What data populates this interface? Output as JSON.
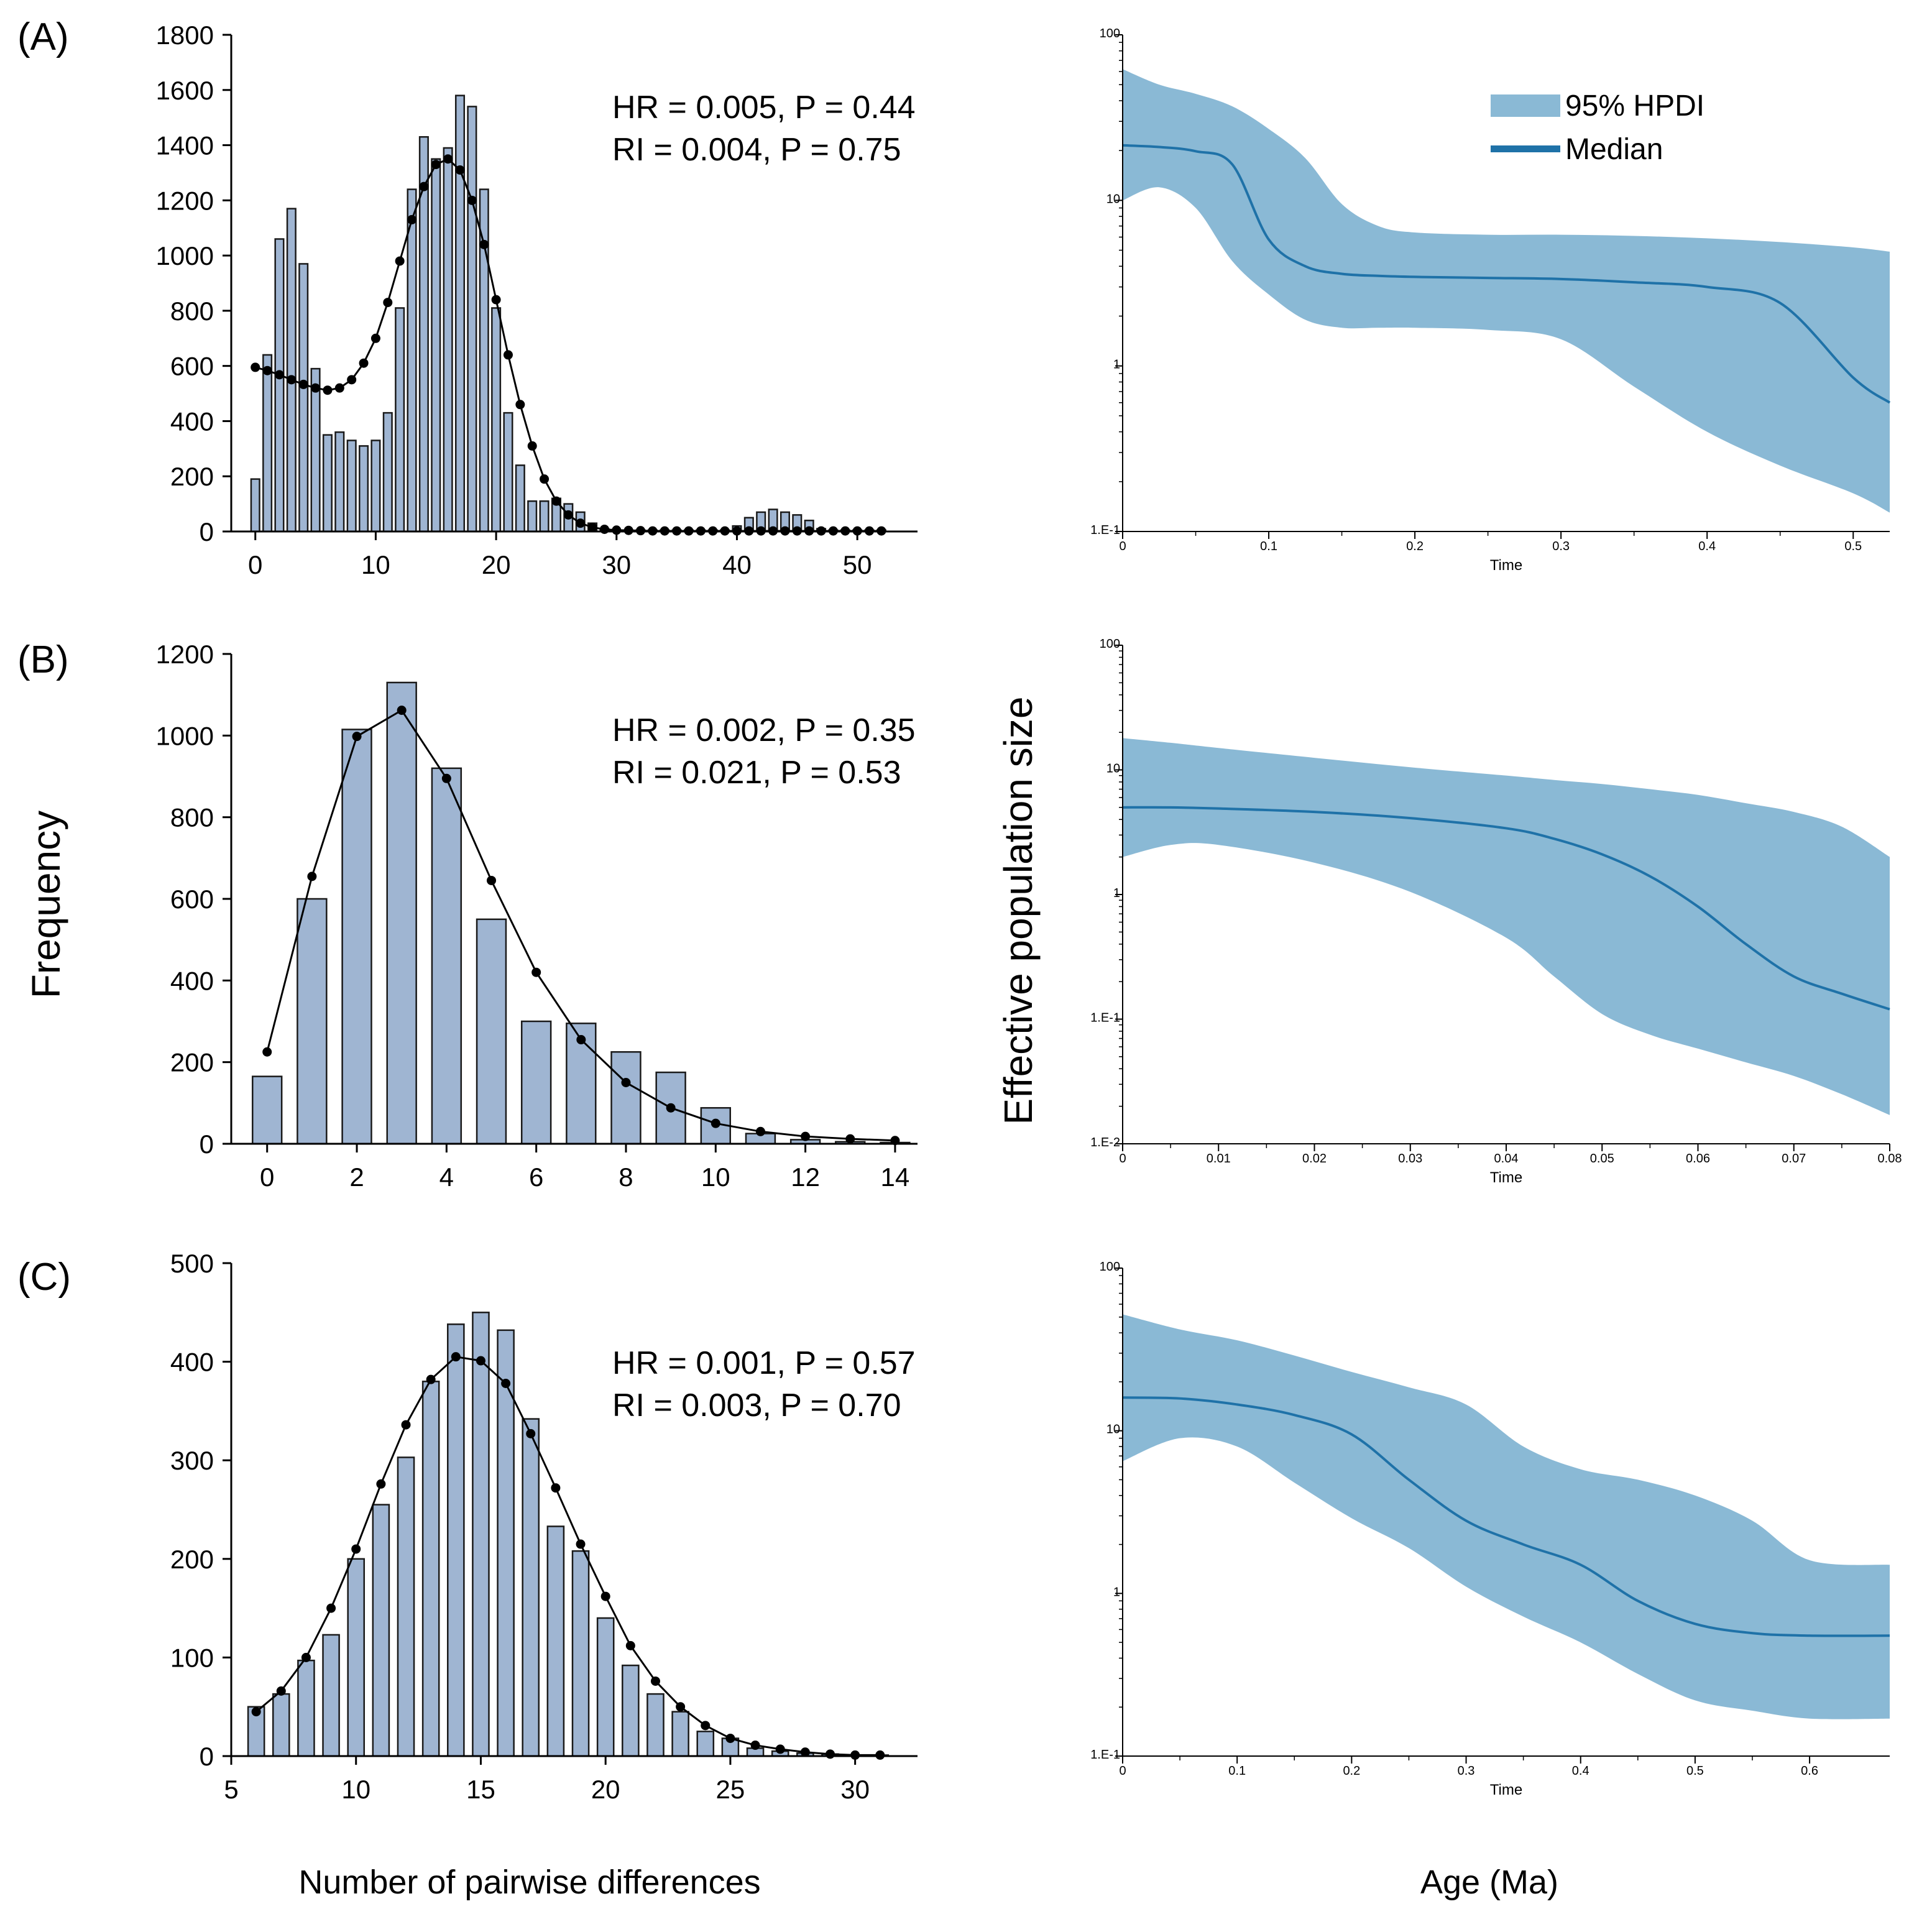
{
  "figure": {
    "left_ylabel": "Frequency",
    "left_xlabel": "Number of pairwise differences",
    "right_ylabel": "Effective population size",
    "right_xlabel": "Age (Ma)"
  },
  "colors": {
    "bar_fill": "#9FB5D2",
    "bar_stroke": "#1A1A1A",
    "hpd_fill": "#8AB9D5",
    "median_line": "#1F72A8",
    "axis": "#000000",
    "expected_line": "#000000"
  },
  "legend": {
    "hpdi_label": "95% HPDI",
    "median_label": "Median"
  },
  "chart_data": [
    {
      "panel": "(A)",
      "type": "bar",
      "title": "",
      "xlabel": "Number of pairwise differences",
      "ylabel": "Frequency",
      "xlim": [
        -2,
        55
      ],
      "ylim": [
        0,
        1800
      ],
      "xticks": [
        0,
        10,
        20,
        30,
        40,
        50
      ],
      "yticks": [
        0,
        200,
        400,
        600,
        800,
        1000,
        1200,
        1400,
        1600,
        1800
      ],
      "stats": [
        "HR = 0.005, P = 0.44",
        "RI = 0.004, P = 0.75"
      ],
      "bar_width": 0.7,
      "observed": {
        "x": [
          0,
          1,
          2,
          3,
          4,
          5,
          6,
          7,
          8,
          9,
          10,
          11,
          12,
          13,
          14,
          15,
          16,
          17,
          18,
          19,
          20,
          21,
          22,
          23,
          24,
          25,
          26,
          27,
          28,
          29,
          30,
          31,
          32,
          33,
          34,
          35,
          36,
          37,
          38,
          39,
          40,
          41,
          42,
          43,
          44,
          45,
          46,
          47,
          48,
          49,
          50,
          51,
          52
        ],
        "values": [
          190,
          640,
          1060,
          1170,
          970,
          590,
          350,
          360,
          330,
          310,
          330,
          430,
          810,
          1240,
          1430,
          1350,
          1390,
          1580,
          1540,
          1240,
          810,
          430,
          240,
          110,
          110,
          120,
          100,
          70,
          30,
          10,
          5,
          5,
          5,
          5,
          5,
          5,
          5,
          5,
          5,
          5,
          20,
          50,
          70,
          80,
          70,
          60,
          40,
          10,
          5,
          5,
          5,
          5,
          5
        ]
      },
      "expected": {
        "x": [
          0,
          1,
          2,
          3,
          4,
          5,
          6,
          7,
          8,
          9,
          10,
          11,
          12,
          13,
          14,
          15,
          16,
          17,
          18,
          19,
          20,
          21,
          22,
          23,
          24,
          25,
          26,
          27,
          28,
          29,
          30,
          31,
          32,
          33,
          34,
          35,
          36,
          37,
          38,
          39,
          40,
          41,
          42,
          43,
          44,
          45,
          46,
          47,
          48,
          49,
          50,
          51,
          52
        ],
        "values": [
          595,
          583,
          568,
          550,
          533,
          520,
          512,
          520,
          550,
          610,
          700,
          830,
          980,
          1130,
          1250,
          1330,
          1350,
          1310,
          1200,
          1040,
          840,
          640,
          460,
          310,
          190,
          110,
          60,
          30,
          15,
          8,
          5,
          4,
          3,
          2,
          2,
          2,
          2,
          2,
          2,
          2,
          2,
          2,
          2,
          2,
          2,
          2,
          2,
          2,
          2,
          2,
          2,
          2,
          2
        ]
      }
    },
    {
      "panel": "(B)",
      "type": "bar",
      "title": "",
      "xlabel": "Number of pairwise differences",
      "ylabel": "Frequency",
      "xlim": [
        -0.8,
        14.5
      ],
      "ylim": [
        0,
        1200
      ],
      "xticks": [
        0,
        2,
        4,
        6,
        8,
        10,
        12,
        14
      ],
      "yticks": [
        0,
        200,
        400,
        600,
        800,
        1000,
        1200
      ],
      "stats": [
        "HR = 0.002, P = 0.35",
        "RI = 0.021, P = 0.53"
      ],
      "bar_width": 0.65,
      "observed": {
        "x": [
          0,
          1,
          2,
          3,
          4,
          5,
          6,
          7,
          8,
          9,
          10,
          11,
          12,
          13,
          14
        ],
        "values": [
          165,
          600,
          1015,
          1130,
          920,
          550,
          300,
          295,
          225,
          175,
          88,
          25,
          10,
          5,
          3
        ]
      },
      "expected": {
        "x": [
          0,
          1,
          2,
          3,
          4,
          5,
          6,
          7,
          8,
          9,
          10,
          11,
          12,
          13,
          14
        ],
        "values": [
          225,
          655,
          998,
          1062,
          895,
          645,
          420,
          255,
          150,
          88,
          50,
          30,
          18,
          12,
          8
        ]
      }
    },
    {
      "panel": "(C)",
      "type": "bar",
      "title": "",
      "xlabel": "Number of pairwise differences",
      "ylabel": "Frequency",
      "xlim": [
        5,
        32.5
      ],
      "ylim": [
        0,
        500
      ],
      "xticks": [
        5,
        10,
        15,
        20,
        25,
        30
      ],
      "yticks": [
        0,
        100,
        200,
        300,
        400,
        500
      ],
      "stats": [
        "HR = 0.001, P = 0.57",
        "RI = 0.003, P = 0.70"
      ],
      "bar_width": 0.65,
      "observed": {
        "x": [
          6,
          7,
          8,
          9,
          10,
          11,
          12,
          13,
          14,
          15,
          16,
          17,
          18,
          19,
          20,
          21,
          22,
          23,
          24,
          25,
          26,
          27,
          28,
          29,
          30,
          31
        ],
        "values": [
          50,
          63,
          97,
          123,
          200,
          255,
          303,
          380,
          438,
          450,
          432,
          342,
          233,
          208,
          140,
          92,
          63,
          45,
          25,
          18,
          8,
          5,
          3,
          2,
          1,
          1
        ]
      },
      "expected": {
        "x": [
          6,
          7,
          8,
          9,
          10,
          11,
          12,
          13,
          14,
          15,
          16,
          17,
          18,
          19,
          20,
          21,
          22,
          23,
          24,
          25,
          26,
          27,
          28,
          29,
          30,
          31
        ],
        "values": [
          45,
          66,
          100,
          150,
          210,
          276,
          336,
          382,
          405,
          401,
          378,
          327,
          272,
          215,
          162,
          112,
          76,
          50,
          31,
          18,
          11,
          7,
          4,
          2,
          1,
          1
        ]
      }
    },
    {
      "panel": "(A) skyline",
      "type": "area",
      "xlabel": "Time",
      "ylabel": "Effective population size",
      "xlim": [
        0,
        0.525
      ],
      "ylog_range": [
        -1,
        2
      ],
      "yticks": [
        {
          "v": 0.1,
          "label": "1.E-1"
        },
        {
          "v": 1,
          "label": "1"
        },
        {
          "v": 10,
          "label": "10"
        },
        {
          "v": 100,
          "label": "100"
        }
      ],
      "xticks": [
        {
          "v": 0,
          "label": "0"
        },
        {
          "v": 0.1,
          "label": "0.1"
        },
        {
          "v": 0.2,
          "label": "0.2"
        },
        {
          "v": 0.3,
          "label": "0.3"
        },
        {
          "v": 0.4,
          "label": "0.4"
        },
        {
          "v": 0.5,
          "label": "0.5"
        }
      ],
      "x": [
        0,
        0.025,
        0.05,
        0.075,
        0.1,
        0.125,
        0.15,
        0.175,
        0.2,
        0.25,
        0.3,
        0.35,
        0.4,
        0.45,
        0.5,
        0.525
      ],
      "upper": [
        62,
        50,
        44,
        37,
        27,
        18,
        9.5,
        7,
        6.4,
        6.2,
        6.2,
        6.1,
        5.9,
        5.6,
        5.2,
        4.9
      ],
      "median": [
        21.5,
        21,
        19.8,
        16.5,
        5.8,
        4,
        3.6,
        3.5,
        3.45,
        3.4,
        3.35,
        3.2,
        3.0,
        2.4,
        0.85,
        0.6
      ],
      "lower": [
        10,
        12,
        9,
        4.3,
        2.7,
        1.9,
        1.7,
        1.7,
        1.7,
        1.65,
        1.45,
        0.75,
        0.4,
        0.25,
        0.17,
        0.13
      ]
    },
    {
      "panel": "(B) skyline",
      "type": "area",
      "xlabel": "Time",
      "ylabel": "Effective population size",
      "xlim": [
        0,
        0.08
      ],
      "ylog_range": [
        -2,
        2
      ],
      "yticks": [
        {
          "v": 0.01,
          "label": "1.E-2"
        },
        {
          "v": 0.1,
          "label": "1.E-1"
        },
        {
          "v": 1,
          "label": "1"
        },
        {
          "v": 10,
          "label": "10"
        },
        {
          "v": 100,
          "label": "100"
        }
      ],
      "xticks": [
        {
          "v": 0,
          "label": "0"
        },
        {
          "v": 0.01,
          "label": "0.01"
        },
        {
          "v": 0.02,
          "label": "0.02"
        },
        {
          "v": 0.03,
          "label": "0.03"
        },
        {
          "v": 0.04,
          "label": "0.04"
        },
        {
          "v": 0.05,
          "label": "0.05"
        },
        {
          "v": 0.06,
          "label": "0.06"
        },
        {
          "v": 0.07,
          "label": "0.07"
        },
        {
          "v": 0.08,
          "label": "0.08"
        }
      ],
      "x": [
        0,
        0.005,
        0.01,
        0.02,
        0.03,
        0.04,
        0.045,
        0.05,
        0.055,
        0.06,
        0.065,
        0.07,
        0.075,
        0.08
      ],
      "upper": [
        18,
        16.5,
        15,
        12.5,
        10.5,
        9,
        8.3,
        7.7,
        7,
        6.3,
        5.4,
        4.6,
        3.5,
        2
      ],
      "median": [
        5,
        5,
        4.9,
        4.6,
        4.1,
        3.4,
        2.8,
        2.1,
        1.4,
        0.8,
        0.4,
        0.22,
        0.16,
        0.12
      ],
      "lower": [
        2,
        2.5,
        2.5,
        1.8,
        1.05,
        0.45,
        0.22,
        0.11,
        0.075,
        0.058,
        0.045,
        0.035,
        0.025,
        0.017
      ]
    },
    {
      "panel": "(C) skyline",
      "type": "area",
      "xlabel": "Time",
      "ylabel": "Effective population size",
      "xlim": [
        0,
        0.67
      ],
      "ylog_range": [
        -1,
        2
      ],
      "yticks": [
        {
          "v": 0.1,
          "label": "1.E-1"
        },
        {
          "v": 1,
          "label": "1"
        },
        {
          "v": 10,
          "label": "10"
        },
        {
          "v": 100,
          "label": "100"
        }
      ],
      "xticks": [
        {
          "v": 0,
          "label": "0"
        },
        {
          "v": 0.1,
          "label": "0.1"
        },
        {
          "v": 0.2,
          "label": "0.2"
        },
        {
          "v": 0.3,
          "label": "0.3"
        },
        {
          "v": 0.4,
          "label": "0.4"
        },
        {
          "v": 0.5,
          "label": "0.5"
        },
        {
          "v": 0.6,
          "label": "0.6"
        }
      ],
      "x": [
        0,
        0.05,
        0.1,
        0.15,
        0.2,
        0.25,
        0.3,
        0.35,
        0.4,
        0.45,
        0.5,
        0.55,
        0.6,
        0.67
      ],
      "upper": [
        52,
        42,
        36,
        29,
        23,
        18.5,
        14.5,
        8,
        5.8,
        5,
        4,
        2.8,
        1.6,
        1.5
      ],
      "median": [
        16,
        15.8,
        14.5,
        12.5,
        9.5,
        5,
        2.8,
        2,
        1.5,
        0.9,
        0.65,
        0.57,
        0.55,
        0.55
      ],
      "lower": [
        6.5,
        9,
        8,
        4.8,
        2.9,
        1.9,
        1.1,
        0.72,
        0.5,
        0.32,
        0.22,
        0.19,
        0.17,
        0.17
      ]
    }
  ]
}
